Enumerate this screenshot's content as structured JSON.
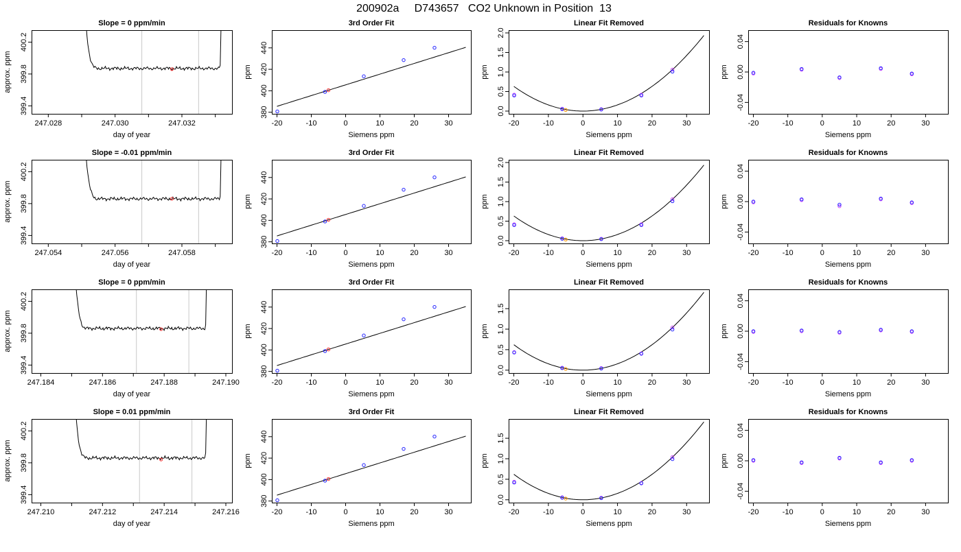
{
  "figure": {
    "title": "200902a     D743657   CO2 Unknown in Position  13"
  },
  "chart_data": [
    {
      "type": "line",
      "kind": "trace",
      "title": "Slope =  0  ppm/min",
      "xlabel": "day of year",
      "ylabel": "approx. ppm",
      "xlim": [
        247.0275,
        247.0335
      ],
      "ylim": [
        399.3,
        400.35
      ],
      "xticks": [
        247.028,
        247.03,
        247.032
      ],
      "xtick_labels": [
        "247.028",
        "247.030",
        "247.032"
      ],
      "xminor": [
        247.029,
        247.031,
        247.033
      ],
      "yticks": [
        399.4,
        399.8,
        400.2
      ],
      "ytick_labels": [
        "399.4",
        "399.8",
        "400.2"
      ],
      "start": 247.029,
      "end": 247.0332,
      "level": 399.87,
      "start_level": 401.5,
      "end_level": 401.5,
      "vlines": [
        247.0308,
        247.0325
      ],
      "marker_x": 247.0317,
      "marker_y": 399.86
    },
    {
      "type": "line",
      "kind": "trace",
      "title": "Slope =  -0.01  ppm/min",
      "xlabel": "day of year",
      "ylabel": "approx. ppm",
      "xlim": [
        247.0535,
        247.0595
      ],
      "ylim": [
        399.3,
        400.35
      ],
      "xticks": [
        247.054,
        247.056,
        247.058
      ],
      "xtick_labels": [
        "247.054",
        "247.056",
        "247.058"
      ],
      "xminor": [
        247.055,
        247.057,
        247.059
      ],
      "yticks": [
        399.4,
        399.8,
        400.2
      ],
      "ytick_labels": [
        "399.4",
        "399.8",
        "400.2"
      ],
      "start": 247.055,
      "end": 247.0592,
      "level": 399.86,
      "start_level": 401.5,
      "end_level": 401.5,
      "vlines": [
        247.0568,
        247.0585
      ],
      "marker_x": 247.0577,
      "marker_y": 399.86
    },
    {
      "type": "line",
      "kind": "trace",
      "title": "Slope =  0  ppm/min",
      "xlabel": "day of year",
      "ylabel": "approx. ppm",
      "xlim": [
        247.1837,
        247.1902
      ],
      "ylim": [
        399.3,
        400.35
      ],
      "xticks": [
        247.184,
        247.186,
        247.188,
        247.19
      ],
      "xtick_labels": [
        "247.184",
        "247.186",
        "247.188",
        "247.190"
      ],
      "xminor": [
        247.185,
        247.187,
        247.189
      ],
      "yticks": [
        399.4,
        399.8,
        400.2
      ],
      "ytick_labels": [
        "399.4",
        "399.8",
        "400.2"
      ],
      "start": 247.185,
      "end": 247.1894,
      "level": 399.86,
      "start_level": 401.5,
      "end_level": 401.5,
      "vlines": [
        247.1871,
        247.1888
      ],
      "marker_x": 247.1879,
      "marker_y": 399.85
    },
    {
      "type": "line",
      "kind": "trace",
      "title": "Slope =  0.01  ppm/min",
      "xlabel": "day of year",
      "ylabel": "approx. ppm",
      "xlim": [
        247.2097,
        247.2162
      ],
      "ylim": [
        399.3,
        400.35
      ],
      "xticks": [
        247.21,
        247.212,
        247.214,
        247.216
      ],
      "xtick_labels": [
        "247.210",
        "247.212",
        "247.214",
        "247.216"
      ],
      "xminor": [
        247.211,
        247.213,
        247.215
      ],
      "yticks": [
        399.4,
        399.8,
        400.2
      ],
      "ytick_labels": [
        "399.4",
        "399.8",
        "400.2"
      ],
      "start": 247.211,
      "end": 247.2154,
      "level": 399.86,
      "start_level": 401.5,
      "end_level": 401.5,
      "vlines": [
        247.2132,
        247.2149
      ],
      "marker_x": 247.2139,
      "marker_y": 399.84
    },
    {
      "type": "scatter",
      "kind": "fit",
      "title": "3rd Order Fit",
      "xlabel": "Siemens ppm",
      "ylabel": "ppm",
      "xlim": [
        -21.5,
        36.5
      ],
      "ylim": [
        378.5,
        456.5
      ],
      "xticks": [
        -20,
        -10,
        0,
        10,
        20,
        30
      ],
      "xtick_labels": [
        "-20",
        "-10",
        "0",
        "10",
        "20",
        "30"
      ],
      "yticks": [
        380,
        400,
        420,
        440
      ],
      "ytick_labels": [
        "380",
        "400",
        "420",
        "440"
      ],
      "curve": {
        "intercept": 405.5,
        "slope": 1.0,
        "quad": 0,
        "from": -20,
        "to": 35
      },
      "knowns": [
        [
          -19.9,
          380.7
        ],
        [
          -6.0,
          399.0
        ],
        [
          5.3,
          413.5
        ],
        [
          16.9,
          428.6
        ],
        [
          25.9,
          440.1
        ]
      ],
      "unknown": [
        [
          -5.0,
          400.5
        ]
      ]
    },
    {
      "type": "scatter",
      "kind": "fit",
      "title": "3rd Order Fit",
      "xlabel": "Siemens ppm",
      "ylabel": "ppm",
      "xlim": [
        -21.5,
        36.5
      ],
      "ylim": [
        378.5,
        456.5
      ],
      "xticks": [
        -20,
        -10,
        0,
        10,
        20,
        30
      ],
      "xtick_labels": [
        "-20",
        "-10",
        "0",
        "10",
        "20",
        "30"
      ],
      "yticks": [
        380,
        400,
        420,
        440
      ],
      "ytick_labels": [
        "380",
        "400",
        "420",
        "440"
      ],
      "curve": {
        "intercept": 405.5,
        "slope": 1.0,
        "quad": 0,
        "from": -20,
        "to": 35
      },
      "knowns": [
        [
          -19.9,
          380.7
        ],
        [
          -6.0,
          399.0
        ],
        [
          5.3,
          413.5
        ],
        [
          16.9,
          428.6
        ],
        [
          25.9,
          440.1
        ]
      ],
      "unknown": [
        [
          -5.0,
          400.5
        ]
      ]
    },
    {
      "type": "scatter",
      "kind": "fit",
      "title": "3rd Order Fit",
      "xlabel": "Siemens ppm",
      "ylabel": "ppm",
      "xlim": [
        -21.5,
        36.5
      ],
      "ylim": [
        378.5,
        456.5
      ],
      "xticks": [
        -20,
        -10,
        0,
        10,
        20,
        30
      ],
      "xtick_labels": [
        "-20",
        "-10",
        "0",
        "10",
        "20",
        "30"
      ],
      "yticks": [
        380,
        400,
        420,
        440
      ],
      "ytick_labels": [
        "380",
        "400",
        "420",
        "440"
      ],
      "curve": {
        "intercept": 405.5,
        "slope": 1.0,
        "quad": 0,
        "from": -20,
        "to": 35
      },
      "knowns": [
        [
          -19.9,
          380.7
        ],
        [
          -6.0,
          399.0
        ],
        [
          5.3,
          413.5
        ],
        [
          16.9,
          428.6
        ],
        [
          25.9,
          440.1
        ]
      ],
      "unknown": [
        [
          -5.0,
          400.5
        ]
      ]
    },
    {
      "type": "scatter",
      "kind": "fit",
      "title": "3rd Order Fit",
      "xlabel": "Siemens ppm",
      "ylabel": "ppm",
      "xlim": [
        -21.5,
        36.5
      ],
      "ylim": [
        378.5,
        456.5
      ],
      "xticks": [
        -20,
        -10,
        0,
        10,
        20,
        30
      ],
      "xtick_labels": [
        "-20",
        "-10",
        "0",
        "10",
        "20",
        "30"
      ],
      "yticks": [
        380,
        400,
        420,
        440
      ],
      "ytick_labels": [
        "380",
        "400",
        "420",
        "440"
      ],
      "curve": {
        "intercept": 405.5,
        "slope": 1.0,
        "quad": 0,
        "from": -20,
        "to": 35
      },
      "knowns": [
        [
          -19.9,
          380.7
        ],
        [
          -6.0,
          399.0
        ],
        [
          5.3,
          413.5
        ],
        [
          16.9,
          428.6
        ],
        [
          25.9,
          440.1
        ]
      ],
      "unknown": [
        [
          -5.0,
          400.5
        ]
      ]
    },
    {
      "type": "scatter",
      "kind": "fit",
      "title": "Linear Fit Removed",
      "xlabel": "Siemens ppm",
      "ylabel": "ppm",
      "xlim": [
        -21.5,
        36.5
      ],
      "ylim": [
        -0.07,
        2.07
      ],
      "xticks": [
        -20,
        -10,
        0,
        10,
        20,
        30
      ],
      "xtick_labels": [
        "-20",
        "-10",
        "0",
        "10",
        "20",
        "30"
      ],
      "yticks": [
        0.0,
        0.5,
        1.0,
        1.5,
        2.0
      ],
      "ytick_labels": [
        "0.0",
        "0.5",
        "1.0",
        "1.5",
        "2.0"
      ],
      "curve": {
        "intercept": 0,
        "slope": 0,
        "quad": 0.00158,
        "from": -20,
        "to": 35
      },
      "knowns": [
        [
          -19.9,
          0.4
        ],
        [
          -6.0,
          0.05
        ],
        [
          5.3,
          0.04
        ],
        [
          16.9,
          0.4
        ],
        [
          25.9,
          1.01
        ]
      ],
      "knowns_alt": [
        [
          -19.9,
          0.42
        ],
        [
          -6.0,
          0.06
        ],
        [
          5.3,
          0.05
        ],
        [
          16.9,
          0.42
        ],
        [
          25.9,
          1.06
        ]
      ],
      "unknown": [
        [
          -5.0,
          0.03
        ]
      ]
    },
    {
      "type": "scatter",
      "kind": "fit",
      "title": "Linear Fit Removed",
      "xlabel": "Siemens ppm",
      "ylabel": "ppm",
      "xlim": [
        -21.5,
        36.5
      ],
      "ylim": [
        -0.07,
        2.07
      ],
      "xticks": [
        -20,
        -10,
        0,
        10,
        20,
        30
      ],
      "xtick_labels": [
        "-20",
        "-10",
        "0",
        "10",
        "20",
        "30"
      ],
      "yticks": [
        0.0,
        0.5,
        1.0,
        1.5,
        2.0
      ],
      "ytick_labels": [
        "0.0",
        "0.5",
        "1.0",
        "1.5",
        "2.0"
      ],
      "curve": {
        "intercept": 0,
        "slope": 0,
        "quad": 0.00158,
        "from": -20,
        "to": 35
      },
      "knowns": [
        [
          -19.9,
          0.4
        ],
        [
          -6.0,
          0.05
        ],
        [
          5.3,
          0.04
        ],
        [
          16.9,
          0.4
        ],
        [
          25.9,
          1.01
        ]
      ],
      "knowns_alt": [
        [
          -19.9,
          0.42
        ],
        [
          -6.0,
          0.06
        ],
        [
          5.3,
          0.05
        ],
        [
          16.9,
          0.42
        ],
        [
          25.9,
          1.06
        ]
      ],
      "unknown": [
        [
          -5.0,
          0.03
        ]
      ]
    },
    {
      "type": "scatter",
      "kind": "fit",
      "title": "Linear Fit Removed",
      "xlabel": "Siemens ppm",
      "ylabel": "ppm",
      "xlim": [
        -21.5,
        36.5
      ],
      "ylim": [
        -0.07,
        1.97
      ],
      "xticks": [
        -20,
        -10,
        0,
        10,
        20,
        30
      ],
      "xtick_labels": [
        "-20",
        "-10",
        "0",
        "10",
        "20",
        "30"
      ],
      "yticks": [
        0.0,
        0.5,
        1.0,
        1.5
      ],
      "ytick_labels": [
        "0.0",
        "0.5",
        "1.0",
        "1.5"
      ],
      "curve": {
        "intercept": 0,
        "slope": 0,
        "quad": 0.00155,
        "from": -20,
        "to": 35
      },
      "knowns": [
        [
          -19.9,
          0.43
        ],
        [
          -6.0,
          0.05
        ],
        [
          5.3,
          0.04
        ],
        [
          16.9,
          0.4
        ],
        [
          25.9,
          0.99
        ]
      ],
      "knowns_alt": [
        [
          -19.9,
          0.44
        ],
        [
          -6.0,
          0.06
        ],
        [
          5.3,
          0.05
        ],
        [
          16.9,
          0.41
        ],
        [
          25.9,
          1.04
        ]
      ],
      "unknown": [
        [
          -5.0,
          0.03
        ]
      ]
    },
    {
      "type": "scatter",
      "kind": "fit",
      "title": "Linear Fit Removed",
      "xlabel": "Siemens ppm",
      "ylabel": "ppm",
      "xlim": [
        -21.5,
        36.5
      ],
      "ylim": [
        -0.07,
        1.97
      ],
      "xticks": [
        -20,
        -10,
        0,
        10,
        20,
        30
      ],
      "xtick_labels": [
        "-20",
        "-10",
        "0",
        "10",
        "20",
        "30"
      ],
      "yticks": [
        0.0,
        0.5,
        1.0,
        1.5
      ],
      "ytick_labels": [
        "0.0",
        "0.5",
        "1.0",
        "1.5"
      ],
      "curve": {
        "intercept": 0,
        "slope": 0,
        "quad": 0.00155,
        "from": -20,
        "to": 35
      },
      "knowns": [
        [
          -19.9,
          0.42
        ],
        [
          -6.0,
          0.05
        ],
        [
          5.3,
          0.04
        ],
        [
          16.9,
          0.4
        ],
        [
          25.9,
          0.99
        ]
      ],
      "knowns_alt": [
        [
          -19.9,
          0.44
        ],
        [
          -6.0,
          0.06
        ],
        [
          5.3,
          0.05
        ],
        [
          16.9,
          0.41
        ],
        [
          25.9,
          1.04
        ]
      ],
      "unknown": [
        [
          -5.0,
          0.03
        ]
      ]
    },
    {
      "type": "scatter",
      "kind": "resid",
      "title": "Residuals for Knowns",
      "xlabel": "Siemens ppm",
      "ylabel": "ppm",
      "xlim": [
        -21.5,
        36.5
      ],
      "ylim": [
        -0.055,
        0.055
      ],
      "xticks": [
        -20,
        -10,
        0,
        10,
        20,
        30
      ],
      "xtick_labels": [
        "-20",
        "-10",
        "0",
        "10",
        "20",
        "30"
      ],
      "yticks": [
        -0.04,
        0.0,
        0.04
      ],
      "ytick_labels": [
        "-0.04",
        "0.00",
        "0.04"
      ],
      "knowns": [
        [
          -20,
          -0.001
        ],
        [
          -6,
          0.004
        ],
        [
          5,
          -0.007
        ],
        [
          17,
          0.005
        ],
        [
          26,
          -0.002
        ]
      ],
      "knowns_alt": [
        [
          -20,
          -0.002
        ],
        [
          -6,
          0.003
        ],
        [
          5,
          -0.008
        ],
        [
          17,
          0.004
        ],
        [
          26,
          -0.003
        ]
      ]
    },
    {
      "type": "scatter",
      "kind": "resid",
      "title": "Residuals for Knowns",
      "xlabel": "Siemens ppm",
      "ylabel": "ppm",
      "xlim": [
        -21.5,
        36.5
      ],
      "ylim": [
        -0.055,
        0.055
      ],
      "xticks": [
        -20,
        -10,
        0,
        10,
        20,
        30
      ],
      "xtick_labels": [
        "-20",
        "-10",
        "0",
        "10",
        "20",
        "30"
      ],
      "yticks": [
        -0.04,
        0.0,
        0.04
      ],
      "ytick_labels": [
        "-0.04",
        "0.00",
        "0.04"
      ],
      "knowns": [
        [
          -20,
          0.0
        ],
        [
          -6,
          0.003
        ],
        [
          5,
          -0.004
        ],
        [
          17,
          0.004
        ],
        [
          26,
          -0.001
        ]
      ],
      "knowns_alt": [
        [
          -20,
          -0.001
        ],
        [
          -6,
          0.002
        ],
        [
          5,
          -0.006
        ],
        [
          17,
          0.003
        ],
        [
          26,
          -0.002
        ]
      ]
    },
    {
      "type": "scatter",
      "kind": "resid",
      "title": "Residuals for Knowns",
      "xlabel": "Siemens ppm",
      "ylabel": "ppm",
      "xlim": [
        -21.5,
        36.5
      ],
      "ylim": [
        -0.055,
        0.055
      ],
      "xticks": [
        -20,
        -10,
        0,
        10,
        20,
        30
      ],
      "xtick_labels": [
        "-20",
        "-10",
        "0",
        "10",
        "20",
        "30"
      ],
      "yticks": [
        -0.04,
        0.0,
        0.04
      ],
      "ytick_labels": [
        "-0.04",
        "0.00",
        "0.04"
      ],
      "knowns": [
        [
          -20,
          0.0
        ],
        [
          -6,
          0.001
        ],
        [
          5,
          -0.001
        ],
        [
          17,
          0.002
        ],
        [
          26,
          0.0
        ]
      ],
      "knowns_alt": [
        [
          -20,
          -0.001
        ],
        [
          -6,
          0.0
        ],
        [
          5,
          -0.002
        ],
        [
          17,
          0.001
        ],
        [
          26,
          -0.001
        ]
      ]
    },
    {
      "type": "scatter",
      "kind": "resid",
      "title": "Residuals for Knowns",
      "xlabel": "Siemens ppm",
      "ylabel": "ppm",
      "xlim": [
        -21.5,
        36.5
      ],
      "ylim": [
        -0.055,
        0.055
      ],
      "xticks": [
        -20,
        -10,
        0,
        10,
        20,
        30
      ],
      "xtick_labels": [
        "-20",
        "-10",
        "0",
        "10",
        "20",
        "30"
      ],
      "yticks": [
        -0.04,
        0.0,
        0.04
      ],
      "ytick_labels": [
        "-0.04",
        "0.00",
        "0.04"
      ],
      "knowns": [
        [
          -20,
          0.001
        ],
        [
          -6,
          -0.002
        ],
        [
          5,
          0.004
        ],
        [
          17,
          -0.002
        ],
        [
          26,
          0.001
        ]
      ],
      "knowns_alt": [
        [
          -20,
          0.0
        ],
        [
          -6,
          -0.003
        ],
        [
          5,
          0.003
        ],
        [
          17,
          -0.003
        ],
        [
          26,
          0.0
        ]
      ]
    }
  ],
  "colors": {
    "axis": "#000000",
    "trace": "#000000",
    "vline": "#c8c8c8",
    "unknown_marker": "#ff3333",
    "unknown_alt_marker": "#ff9900",
    "known_marker": "#2222ff",
    "known_alt_marker": "#cc44ff"
  }
}
